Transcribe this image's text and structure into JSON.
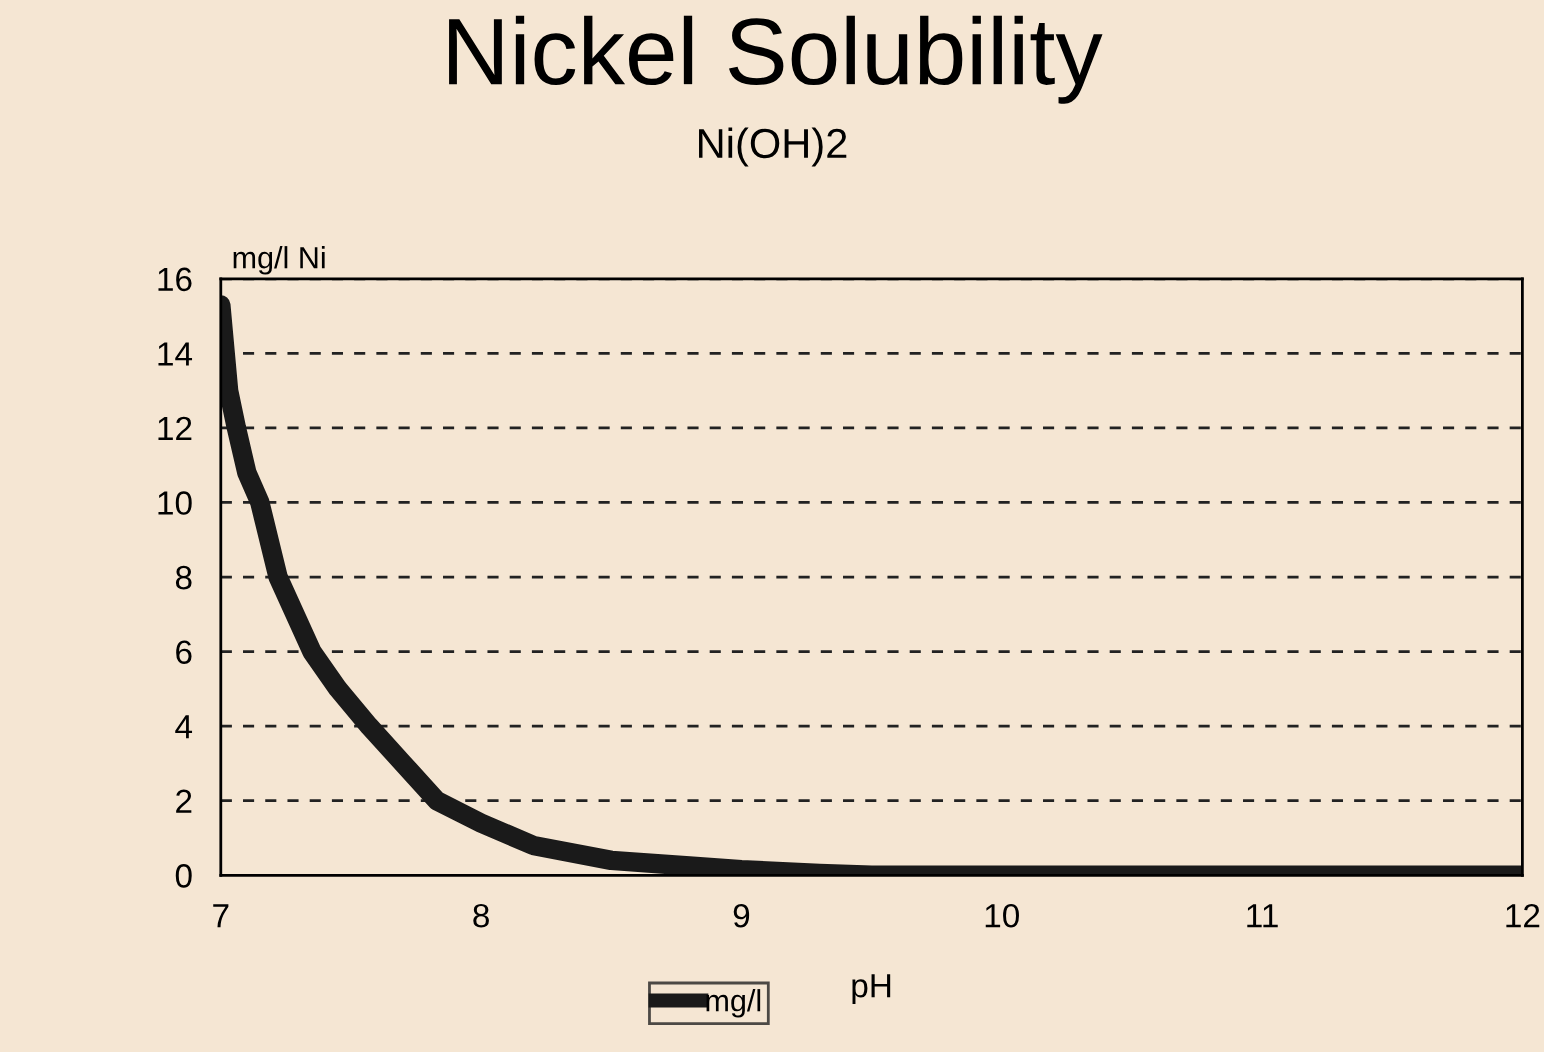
{
  "chart_data": {
    "type": "line",
    "title": "Nickel Solubility",
    "subtitle": "Ni(OH)2",
    "xlabel": "pH",
    "ylabel": "mg/l Ni",
    "xlim": [
      7,
      12
    ],
    "xticks": [
      7,
      8,
      9,
      10,
      11,
      12
    ],
    "ylim": [
      0,
      16
    ],
    "yticks": [
      0,
      2,
      4,
      6,
      8,
      10,
      12,
      14,
      16
    ],
    "grid": "y",
    "legend": "bottom",
    "marker": "none",
    "line_style": "solid",
    "series": [
      {
        "name": "mg/l",
        "color": "#1a1a1a",
        "x": [
          7.0,
          7.03,
          7.06,
          7.1,
          7.15,
          7.22,
          7.35,
          7.45,
          7.57,
          7.7,
          7.83,
          8.0,
          8.2,
          8.5,
          8.8,
          9.0,
          9.3,
          9.5,
          10,
          11,
          12
        ],
        "values": [
          15.3,
          13,
          12,
          10.8,
          10,
          8,
          6,
          5,
          4,
          3,
          2,
          1.4,
          0.8,
          0.4,
          0.25,
          0.15,
          0.05,
          0,
          0,
          0,
          0
        ]
      }
    ]
  }
}
